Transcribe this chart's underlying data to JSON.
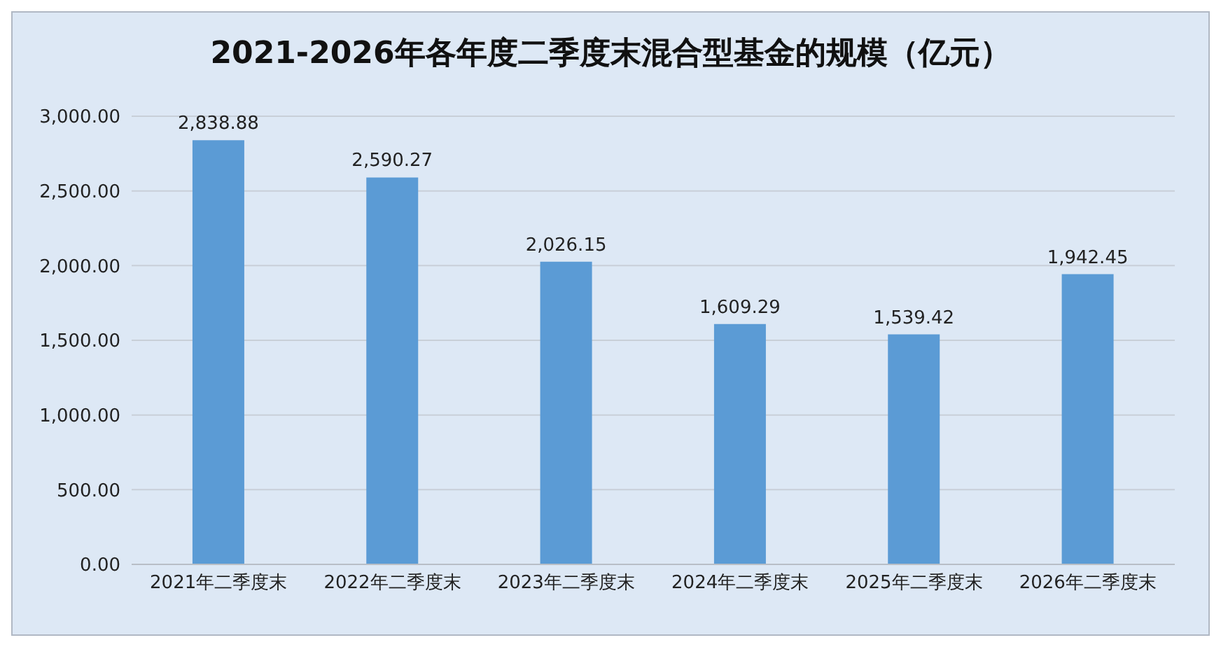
{
  "chart_data": {
    "type": "bar",
    "title": "2021-2026年各年度二季度末混合型基金的规模（亿元）",
    "categories": [
      "2021年二季度末",
      "2022年二季度末",
      "2023年二季度末",
      "2024年二季度末",
      "2025年二季度末",
      "2026年二季度末"
    ],
    "values": [
      2838.88,
      2590.27,
      2026.15,
      1609.29,
      1539.42,
      1942.45
    ],
    "value_labels": [
      "2,838.88",
      "2,590.27",
      "2,026.15",
      "1,609.29",
      "1,539.42",
      "1,942.45"
    ],
    "color": "#5b9bd5",
    "ylim": [
      0,
      3000
    ],
    "yticks": [
      {
        "value": 0,
        "label": "0.00"
      },
      {
        "value": 500,
        "label": "500.00"
      },
      {
        "value": 1000,
        "label": "1,000.00"
      },
      {
        "value": 1500,
        "label": "1,500.00"
      },
      {
        "value": 2000,
        "label": "2,000.00"
      },
      {
        "value": 2500,
        "label": "2,500.00"
      },
      {
        "value": 3000,
        "label": "3,000.00"
      }
    ],
    "grid": "y",
    "legend": false
  }
}
